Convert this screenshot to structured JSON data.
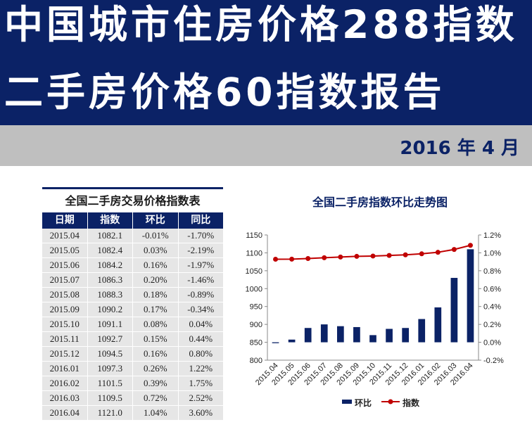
{
  "header": {
    "title_line1": "中国城市住房价格288指数",
    "title_line2": "二手房价格60指数报告",
    "date": "2016 年 4 月"
  },
  "table": {
    "title": "全国二手房交易价格指数表",
    "columns": [
      "日期",
      "指数",
      "环比",
      "同比"
    ],
    "rows": [
      [
        "2015.04",
        "1082.1",
        "-0.01%",
        "-1.70%"
      ],
      [
        "2015.05",
        "1082.4",
        "0.03%",
        "-2.19%"
      ],
      [
        "2015.06",
        "1084.2",
        "0.16%",
        "-1.97%"
      ],
      [
        "2015.07",
        "1086.3",
        "0.20%",
        "-1.46%"
      ],
      [
        "2015.08",
        "1088.3",
        "0.18%",
        "-0.89%"
      ],
      [
        "2015.09",
        "1090.2",
        "0.17%",
        "-0.34%"
      ],
      [
        "2015.10",
        "1091.1",
        "0.08%",
        "0.04%"
      ],
      [
        "2015.11",
        "1092.7",
        "0.15%",
        "0.44%"
      ],
      [
        "2015.12",
        "1094.5",
        "0.16%",
        "0.80%"
      ],
      [
        "2016.01",
        "1097.3",
        "0.26%",
        "1.22%"
      ],
      [
        "2016.02",
        "1101.5",
        "0.39%",
        "1.75%"
      ],
      [
        "2016.03",
        "1109.5",
        "0.72%",
        "2.52%"
      ],
      [
        "2016.04",
        "1121.0",
        "1.04%",
        "3.60%"
      ]
    ]
  },
  "chart_data": {
    "type": "bar",
    "title": "全国二手房指数环比走势图",
    "categories": [
      "2015.04",
      "2015.05",
      "2015.06",
      "2015.07",
      "2015.08",
      "2015.09",
      "2015.10",
      "2015.11",
      "2015.12",
      "2016.01",
      "2016.02",
      "2016.03",
      "2016.04"
    ],
    "series": [
      {
        "name": "环比",
        "type": "bar",
        "axis": "right",
        "color": "#0b2266",
        "values": [
          -0.01,
          0.03,
          0.16,
          0.2,
          0.18,
          0.17,
          0.08,
          0.15,
          0.16,
          0.26,
          0.39,
          0.72,
          1.04
        ]
      },
      {
        "name": "指数",
        "type": "line",
        "axis": "left",
        "color": "#c00000",
        "values": [
          1082.1,
          1082.4,
          1084.2,
          1086.3,
          1088.3,
          1090.2,
          1091.1,
          1092.7,
          1094.5,
          1097.3,
          1101.5,
          1109.5,
          1121.0
        ]
      }
    ],
    "ylim_left": [
      800,
      1150
    ],
    "yticks_left": [
      "800",
      "850",
      "900",
      "950",
      "1000",
      "1050",
      "1100",
      "1150"
    ],
    "ylim_right": [
      -0.2,
      1.2
    ],
    "yticks_right": [
      "-0.2%",
      "0.0%",
      "0.2%",
      "0.4%",
      "0.6%",
      "0.8%",
      "1.0%",
      "1.2%"
    ],
    "grid": false,
    "legend_position": "bottom"
  }
}
